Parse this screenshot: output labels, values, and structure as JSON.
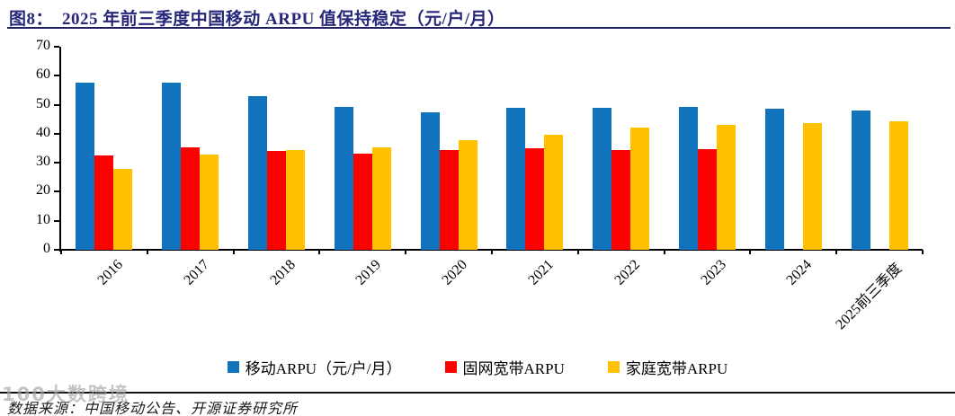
{
  "header": {
    "figure_label": "图8：",
    "title": "2025 年前三季度中国移动 ARPU 值保持稳定（元/户/月）"
  },
  "chart_data": {
    "type": "bar",
    "categories": [
      "2016",
      "2017",
      "2018",
      "2019",
      "2020",
      "2021",
      "2022",
      "2023",
      "2024",
      "2025前三季度"
    ],
    "series": [
      {
        "name": "移动ARPU（元/户/月）",
        "color": "#1273BD",
        "values": [
          57.5,
          57.7,
          53.1,
          49.1,
          47.4,
          48.8,
          49.0,
          49.3,
          48.5,
          48.0
        ]
      },
      {
        "name": "固网宽带ARPU",
        "color": "#FE0000",
        "values": [
          32.4,
          35.3,
          34.0,
          33.0,
          34.4,
          35.0,
          34.5,
          34.8,
          null,
          null
        ]
      },
      {
        "name": "家庭宽带ARPU",
        "color": "#FFC000",
        "values": [
          28.0,
          32.9,
          34.3,
          35.2,
          37.7,
          39.8,
          42.0,
          43.1,
          43.7,
          44.2
        ]
      }
    ],
    "title": "2025 年前三季度中国移动 ARPU 值保持稳定（元/户/月）",
    "xlabel": "",
    "ylabel": "",
    "ylim": [
      0,
      70
    ],
    "y_ticks": [
      0,
      10,
      20,
      30,
      40,
      50,
      60,
      70
    ],
    "grid": false,
    "legend_position": "bottom"
  },
  "watermark": "100大数跨境",
  "footer": {
    "source": "数据来源：中国移动公告、开源证券研究所"
  }
}
